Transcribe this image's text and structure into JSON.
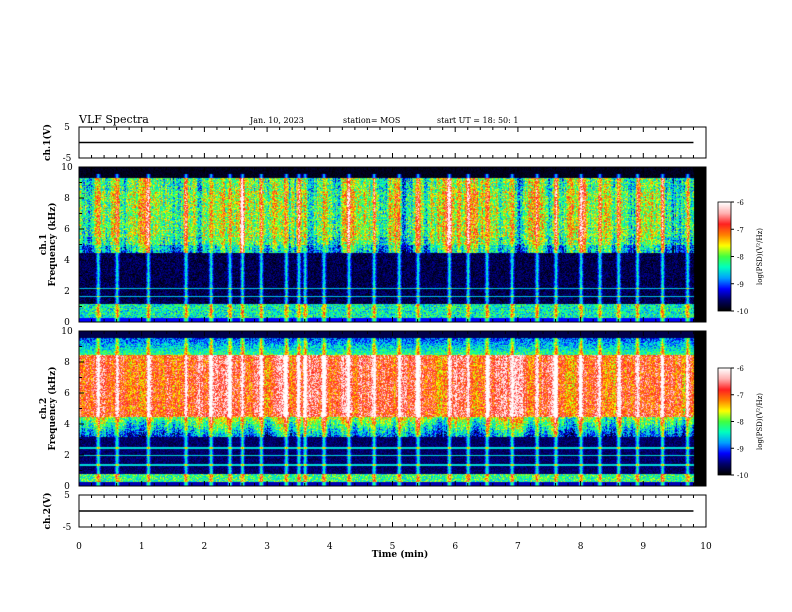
{
  "header": {
    "title": "VLF Spectra",
    "date": "Jan. 10, 2023",
    "station": "station= MOS",
    "start": "start  UT =   18: 50: 1"
  },
  "colors": {
    "scale": [
      "#ffffff",
      "#ffb0b0",
      "#ff2020",
      "#ff8000",
      "#ffff00",
      "#40ff40",
      "#00ffc0",
      "#00a0ff",
      "#0000ff",
      "#00006a",
      "#000000"
    ],
    "trace": "#000000"
  },
  "chart_data": [
    {
      "type": "line",
      "panel": "channel-1-voltage",
      "ylabel": "ch.1(V)",
      "ylim": [
        -5,
        5
      ],
      "y_tick_labels": [
        "5",
        "-5"
      ],
      "series": [
        {
          "x": [
            0,
            9.8
          ],
          "y": [
            0,
            0
          ]
        }
      ]
    },
    {
      "type": "heatmap",
      "panel": "channel-1-spectrogram",
      "ylabel": "ch.1\nFrequency (kHz)",
      "ylim": [
        0,
        10
      ],
      "y_tick_labels": [
        "0",
        "2",
        "4",
        "6",
        "8",
        "10"
      ],
      "colorbar": {
        "range": [
          -10,
          -6
        ],
        "tick_labels": [
          "-6",
          "-7",
          "-8",
          "-9",
          "-10"
        ],
        "label": "log(PSD)(V²/Hz)"
      },
      "quiet_band_khz": [
        2.5,
        4.5
      ],
      "spike_times_min": [
        0.3,
        0.6,
        1.1,
        1.7,
        2.1,
        2.4,
        2.6,
        2.9,
        3.3,
        3.5,
        3.6,
        3.9,
        4.3,
        4.7,
        5.1,
        5.4,
        5.9,
        6.2,
        6.5,
        6.9,
        7.3,
        7.6,
        8.0,
        8.3,
        8.6,
        8.9,
        9.3,
        9.7
      ],
      "emission_band_khz": [
        5,
        9
      ]
    },
    {
      "type": "heatmap",
      "panel": "channel-2-spectrogram",
      "ylabel": "ch.2\nFrequency (kHz)",
      "ylim": [
        0,
        10
      ],
      "y_tick_labels": [
        "0",
        "2",
        "4",
        "6",
        "8",
        "10"
      ],
      "colorbar": {
        "range": [
          -10,
          -6
        ],
        "tick_labels": [
          "-6",
          "-7",
          "-8",
          "-9",
          "-10"
        ],
        "label": "log(PSD)(V²/Hz)"
      },
      "emission_band_khz": [
        4.5,
        8.5
      ],
      "spike_times_min": [
        0.3,
        0.6,
        1.1,
        1.7,
        2.1,
        2.4,
        2.6,
        2.9,
        3.3,
        3.5,
        3.6,
        3.9,
        4.3,
        4.7,
        5.1,
        5.4,
        5.9,
        6.2,
        6.5,
        6.9,
        7.3,
        7.6,
        8.0,
        8.3,
        8.6,
        8.9,
        9.3,
        9.7
      ]
    },
    {
      "type": "line",
      "panel": "channel-2-voltage",
      "ylabel": "ch.2(V)",
      "ylim": [
        -5,
        5
      ],
      "y_tick_labels": [
        "5",
        "-5"
      ],
      "series": [
        {
          "x": [
            0,
            9.8
          ],
          "y": [
            0,
            0
          ]
        }
      ]
    }
  ],
  "x_axis": {
    "label": "Time  (min)",
    "xlim": [
      0,
      10
    ],
    "tick_labels": [
      "0",
      "1",
      "2",
      "3",
      "4",
      "5",
      "6",
      "7",
      "8",
      "9",
      "10"
    ]
  }
}
